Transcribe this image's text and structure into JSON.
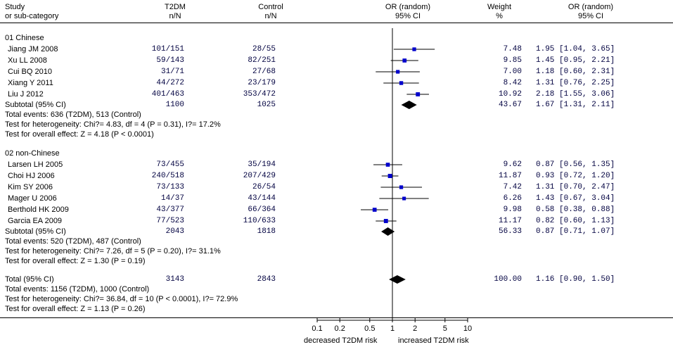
{
  "header": {
    "study": "Study",
    "subcat": "or sub-category",
    "t2dm": "T2DM",
    "t2dm_nn": "n/N",
    "control": "Control",
    "control_nn": "n/N",
    "or_random": "OR (random)",
    "ci95": "95% CI",
    "weight": "Weight",
    "pct": "%",
    "or_random2": "OR (random)",
    "ci95_2": "95% CI"
  },
  "groups": [
    {
      "title": "01 Chinese",
      "studies": [
        {
          "name": "Jiang JM 2008",
          "t2dm": "101/151",
          "control": "28/55",
          "weight": "7.48",
          "or_text": "1.95 [1.04, 3.65]"
        },
        {
          "name": "Xu LL 2008",
          "t2dm": "59/143",
          "control": "82/251",
          "weight": "9.85",
          "or_text": "1.45 [0.95, 2.21]"
        },
        {
          "name": "Cui BQ 2010",
          "t2dm": "31/71",
          "control": "27/68",
          "weight": "7.00",
          "or_text": "1.18 [0.60, 2.31]"
        },
        {
          "name": "Xiang Y 2011",
          "t2dm": "44/272",
          "control": "23/179",
          "weight": "8.42",
          "or_text": "1.31 [0.76, 2.25]"
        },
        {
          "name": "Liu J 2012",
          "t2dm": "401/463",
          "control": "353/472",
          "weight": "10.92",
          "or_text": "2.18 [1.55, 3.06]"
        }
      ],
      "subtotal": {
        "label": "Subtotal (95% CI)",
        "t2dm": "1100",
        "control": "1025",
        "weight": "43.67",
        "or_text": "1.67 [1.31, 2.11]"
      },
      "events": "Total events: 636 (T2DM), 513 (Control)",
      "heterogeneity": "Test for heterogeneity: Chi?= 4.83, df = 4 (P = 0.31), I?= 17.2%",
      "overall": "Test for overall effect: Z = 4.18 (P < 0.0001)"
    },
    {
      "title": "02 non-Chinese",
      "studies": [
        {
          "name": "Larsen LH 2005",
          "t2dm": "73/455",
          "control": "35/194",
          "weight": "9.62",
          "or_text": "0.87 [0.56, 1.35]"
        },
        {
          "name": "Choi HJ 2006",
          "t2dm": "240/518",
          "control": "207/429",
          "weight": "11.87",
          "or_text": "0.93 [0.72, 1.20]"
        },
        {
          "name": "Kim SY 2006",
          "t2dm": "73/133",
          "control": "26/54",
          "weight": "7.42",
          "or_text": "1.31 [0.70, 2.47]"
        },
        {
          "name": "Mager U 2006",
          "t2dm": "14/37",
          "control": "43/144",
          "weight": "6.26",
          "or_text": "1.43 [0.67, 3.04]"
        },
        {
          "name": "Berthold HK 2009",
          "t2dm": "43/377",
          "control": "66/364",
          "weight": "9.98",
          "or_text": "0.58 [0.38, 0.88]"
        },
        {
          "name": "Garcia EA 2009",
          "t2dm": "77/523",
          "control": "110/633",
          "weight": "11.17",
          "or_text": "0.82 [0.60, 1.13]"
        }
      ],
      "subtotal": {
        "label": "Subtotal (95% CI)",
        "t2dm": "2043",
        "control": "1818",
        "weight": "56.33",
        "or_text": "0.87 [0.71, 1.07]"
      },
      "events": "Total events: 520 (T2DM), 487 (Control)",
      "heterogeneity": "Test for heterogeneity: Chi?= 7.26, df = 5 (P = 0.20), I?= 31.1%",
      "overall": "Test for overall effect: Z = 1.30 (P = 0.19)"
    }
  ],
  "total": {
    "label": "Total (95% CI)",
    "t2dm": "3143",
    "control": "2843",
    "weight": "100.00",
    "or_text": "1.16 [0.90, 1.50]",
    "events": "Total events: 1156 (T2DM), 1000 (Control)",
    "heterogeneity": "Test for heterogeneity: Chi?= 36.84, df = 10 (P < 0.0001), I?= 72.9%",
    "overall": "Test for overall effect: Z = 1.13 (P = 0.26)"
  },
  "axis_footer": {
    "left": "decreased T2DM risk",
    "right": "increased T2DM risk"
  },
  "chart_data": {
    "type": "forest",
    "scale": "log",
    "xlim": [
      0.1,
      10
    ],
    "ticks": [
      {
        "value": 0.1,
        "label": "0.1"
      },
      {
        "value": 0.2,
        "label": "0.2"
      },
      {
        "value": 0.5,
        "label": "0.5"
      },
      {
        "value": 1,
        "label": "1"
      },
      {
        "value": 2,
        "label": "2"
      },
      {
        "value": 5,
        "label": "5"
      },
      {
        "value": 10,
        "label": "10"
      }
    ],
    "studies": [
      {
        "name": "Jiang JM 2008",
        "or": 1.95,
        "lo": 1.04,
        "hi": 3.65,
        "weight": 7.48
      },
      {
        "name": "Xu LL 2008",
        "or": 1.45,
        "lo": 0.95,
        "hi": 2.21,
        "weight": 9.85
      },
      {
        "name": "Cui BQ 2010",
        "or": 1.18,
        "lo": 0.6,
        "hi": 2.31,
        "weight": 7.0
      },
      {
        "name": "Xiang Y 2011",
        "or": 1.31,
        "lo": 0.76,
        "hi": 2.25,
        "weight": 8.42
      },
      {
        "name": "Liu J 2012",
        "or": 2.18,
        "lo": 1.55,
        "hi": 3.06,
        "weight": 10.92
      },
      {
        "name": "Larsen LH 2005",
        "or": 0.87,
        "lo": 0.56,
        "hi": 1.35,
        "weight": 9.62
      },
      {
        "name": "Choi HJ 2006",
        "or": 0.93,
        "lo": 0.72,
        "hi": 1.2,
        "weight": 11.87
      },
      {
        "name": "Kim SY 2006",
        "or": 1.31,
        "lo": 0.7,
        "hi": 2.47,
        "weight": 7.42
      },
      {
        "name": "Mager U 2006",
        "or": 1.43,
        "lo": 0.67,
        "hi": 3.04,
        "weight": 6.26
      },
      {
        "name": "Berthold HK 2009",
        "or": 0.58,
        "lo": 0.38,
        "hi": 0.88,
        "weight": 9.98
      },
      {
        "name": "Garcia EA 2009",
        "or": 0.82,
        "lo": 0.6,
        "hi": 1.13,
        "weight": 11.17
      }
    ],
    "summaries": [
      {
        "name": "Subtotal 01 Chinese",
        "or": 1.67,
        "lo": 1.31,
        "hi": 2.11
      },
      {
        "name": "Subtotal 02 non-Chinese",
        "or": 0.87,
        "lo": 0.71,
        "hi": 1.07
      },
      {
        "name": "Total",
        "or": 1.16,
        "lo": 0.9,
        "hi": 1.5
      }
    ],
    "marker_color": "#0000cc",
    "summary_color": "#000000"
  }
}
